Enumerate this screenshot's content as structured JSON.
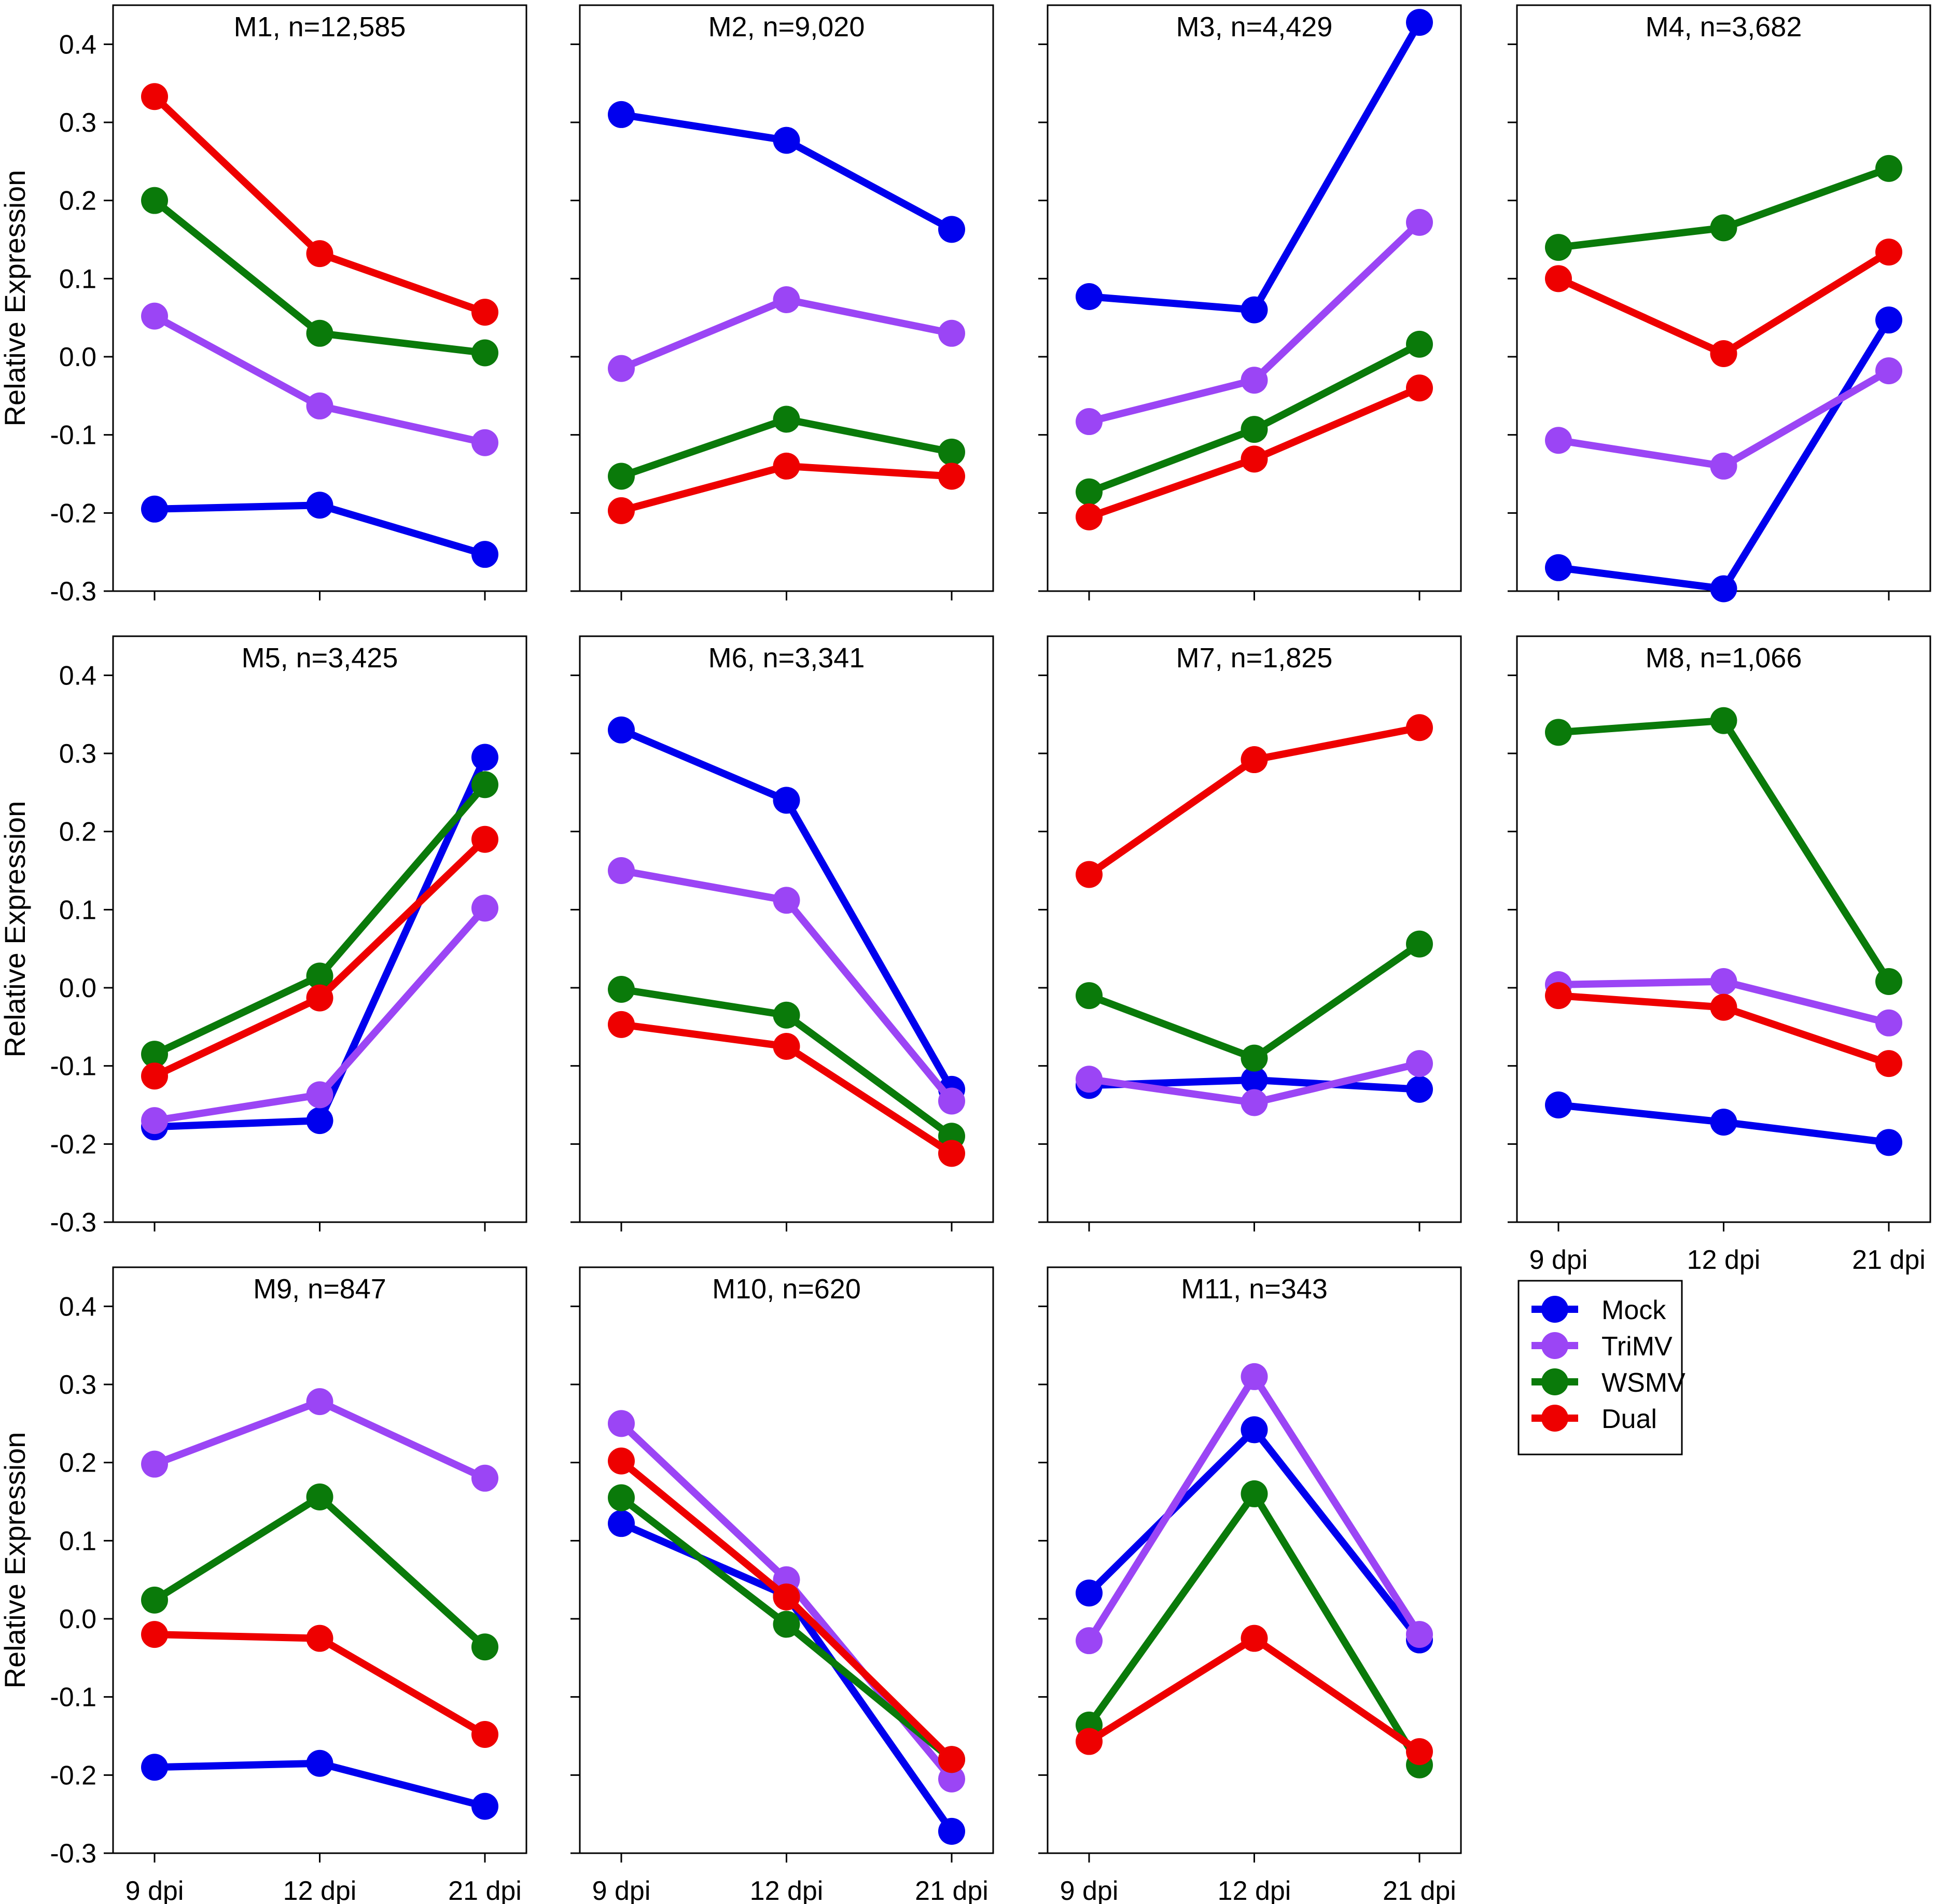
{
  "figure": {
    "ylabel": "Relative Expression"
  },
  "legend": {
    "placement": "right of bottom row",
    "entries": [
      "Mock",
      "TriMV",
      "WSMV",
      "Dual"
    ]
  },
  "colors": {
    "Mock": "#0000ee",
    "TriMV": "#9b45f5",
    "WSMV": "#0a7a0a",
    "Dual": "#ee0000"
  },
  "chart_data": [
    {
      "type": "line",
      "title": "M1, n=12,585",
      "categories": [
        "9 dpi",
        "12 dpi",
        "21 dpi"
      ],
      "ylim": [
        -0.3,
        0.45
      ],
      "yticks": [
        "-0.3",
        "-0.2",
        "-0.1",
        "0.0",
        "0.1",
        "0.2",
        "0.3",
        "0.4"
      ],
      "series": [
        {
          "name": "Mock",
          "values": [
            -0.195,
            -0.19,
            -0.253
          ]
        },
        {
          "name": "TriMV",
          "values": [
            0.052,
            -0.063,
            -0.11
          ]
        },
        {
          "name": "WSMV",
          "values": [
            0.2,
            0.03,
            0.005
          ]
        },
        {
          "name": "Dual",
          "values": [
            0.333,
            0.132,
            0.057
          ]
        }
      ]
    },
    {
      "type": "line",
      "title": "M2, n=9,020",
      "categories": [
        "9 dpi",
        "12 dpi",
        "21 dpi"
      ],
      "ylim": [
        -0.3,
        0.45
      ],
      "series": [
        {
          "name": "Mock",
          "values": [
            0.31,
            0.277,
            0.163
          ]
        },
        {
          "name": "TriMV",
          "values": [
            -0.015,
            0.073,
            0.03
          ]
        },
        {
          "name": "WSMV",
          "values": [
            -0.153,
            -0.08,
            -0.122
          ]
        },
        {
          "name": "Dual",
          "values": [
            -0.197,
            -0.14,
            -0.153
          ]
        }
      ]
    },
    {
      "type": "line",
      "title": "M3, n=4,429",
      "categories": [
        "9 dpi",
        "12 dpi",
        "21 dpi"
      ],
      "ylim": [
        -0.3,
        0.45
      ],
      "series": [
        {
          "name": "Mock",
          "values": [
            0.077,
            0.06,
            0.428
          ]
        },
        {
          "name": "TriMV",
          "values": [
            -0.083,
            -0.03,
            0.172
          ]
        },
        {
          "name": "WSMV",
          "values": [
            -0.173,
            -0.093,
            0.016
          ]
        },
        {
          "name": "Dual",
          "values": [
            -0.205,
            -0.131,
            -0.04
          ]
        }
      ]
    },
    {
      "type": "line",
      "title": "M4, n=3,682",
      "categories": [
        "9 dpi",
        "12 dpi",
        "21 dpi"
      ],
      "ylim": [
        -0.3,
        0.45
      ],
      "series": [
        {
          "name": "Mock",
          "values": [
            -0.27,
            -0.297,
            0.047
          ]
        },
        {
          "name": "TriMV",
          "values": [
            -0.107,
            -0.14,
            -0.018
          ]
        },
        {
          "name": "WSMV",
          "values": [
            0.14,
            0.165,
            0.241
          ]
        },
        {
          "name": "Dual",
          "values": [
            0.1,
            0.004,
            0.134
          ]
        }
      ]
    },
    {
      "type": "line",
      "title": "M5, n=3,425",
      "categories": [
        "9 dpi",
        "12 dpi",
        "21 dpi"
      ],
      "ylim": [
        -0.3,
        0.45
      ],
      "series": [
        {
          "name": "Mock",
          "values": [
            -0.178,
            -0.17,
            0.295
          ]
        },
        {
          "name": "TriMV",
          "values": [
            -0.17,
            -0.137,
            0.102
          ]
        },
        {
          "name": "WSMV",
          "values": [
            -0.085,
            0.015,
            0.26
          ]
        },
        {
          "name": "Dual",
          "values": [
            -0.113,
            -0.013,
            0.19
          ]
        }
      ]
    },
    {
      "type": "line",
      "title": "M6, n=3,341",
      "categories": [
        "9 dpi",
        "12 dpi",
        "21 dpi"
      ],
      "ylim": [
        -0.3,
        0.45
      ],
      "series": [
        {
          "name": "Mock",
          "values": [
            0.33,
            0.24,
            -0.13
          ]
        },
        {
          "name": "TriMV",
          "values": [
            0.15,
            0.112,
            -0.145
          ]
        },
        {
          "name": "WSMV",
          "values": [
            -0.002,
            -0.035,
            -0.19
          ]
        },
        {
          "name": "Dual",
          "values": [
            -0.047,
            -0.075,
            -0.212
          ]
        }
      ]
    },
    {
      "type": "line",
      "title": "M7, n=1,825",
      "categories": [
        "9 dpi",
        "12 dpi",
        "21 dpi"
      ],
      "ylim": [
        -0.3,
        0.45
      ],
      "series": [
        {
          "name": "Mock",
          "values": [
            -0.125,
            -0.118,
            -0.13
          ]
        },
        {
          "name": "TriMV",
          "values": [
            -0.117,
            -0.147,
            -0.097
          ]
        },
        {
          "name": "WSMV",
          "values": [
            -0.01,
            -0.09,
            0.056
          ]
        },
        {
          "name": "Dual",
          "values": [
            0.145,
            0.292,
            0.333
          ]
        }
      ]
    },
    {
      "type": "line",
      "title": "M8, n=1,066",
      "categories": [
        "9 dpi",
        "12 dpi",
        "21 dpi"
      ],
      "ylim": [
        -0.3,
        0.45
      ],
      "series": [
        {
          "name": "Mock",
          "values": [
            -0.15,
            -0.172,
            -0.198
          ]
        },
        {
          "name": "TriMV",
          "values": [
            0.004,
            0.008,
            -0.045
          ]
        },
        {
          "name": "WSMV",
          "values": [
            0.327,
            0.342,
            0.008
          ]
        },
        {
          "name": "Dual",
          "values": [
            -0.01,
            -0.025,
            -0.097
          ]
        }
      ]
    },
    {
      "type": "line",
      "title": "M9, n=847",
      "categories": [
        "9 dpi",
        "12 dpi",
        "21 dpi"
      ],
      "ylim": [
        -0.3,
        0.45
      ],
      "series": [
        {
          "name": "Mock",
          "values": [
            -0.19,
            -0.185,
            -0.24
          ]
        },
        {
          "name": "TriMV",
          "values": [
            0.198,
            0.278,
            0.18
          ]
        },
        {
          "name": "WSMV",
          "values": [
            0.024,
            0.156,
            -0.036
          ]
        },
        {
          "name": "Dual",
          "values": [
            -0.02,
            -0.025,
            -0.148
          ]
        }
      ]
    },
    {
      "type": "line",
      "title": "M10, n=620",
      "categories": [
        "9 dpi",
        "12 dpi",
        "21 dpi"
      ],
      "ylim": [
        -0.3,
        0.45
      ],
      "series": [
        {
          "name": "Mock",
          "values": [
            0.122,
            0.03,
            -0.272
          ]
        },
        {
          "name": "TriMV",
          "values": [
            0.25,
            0.05,
            -0.205
          ]
        },
        {
          "name": "WSMV",
          "values": [
            0.155,
            -0.007,
            -0.18
          ]
        },
        {
          "name": "Dual",
          "values": [
            0.202,
            0.028,
            -0.18
          ]
        }
      ]
    },
    {
      "type": "line",
      "title": "M11, n=343",
      "categories": [
        "9 dpi",
        "12 dpi",
        "21 dpi"
      ],
      "ylim": [
        -0.3,
        0.45
      ],
      "series": [
        {
          "name": "Mock",
          "values": [
            0.033,
            0.242,
            -0.027
          ]
        },
        {
          "name": "TriMV",
          "values": [
            -0.028,
            0.31,
            -0.02
          ]
        },
        {
          "name": "WSMV",
          "values": [
            -0.136,
            0.16,
            -0.187
          ]
        },
        {
          "name": "Dual",
          "values": [
            -0.157,
            -0.025,
            -0.17
          ]
        }
      ]
    }
  ]
}
